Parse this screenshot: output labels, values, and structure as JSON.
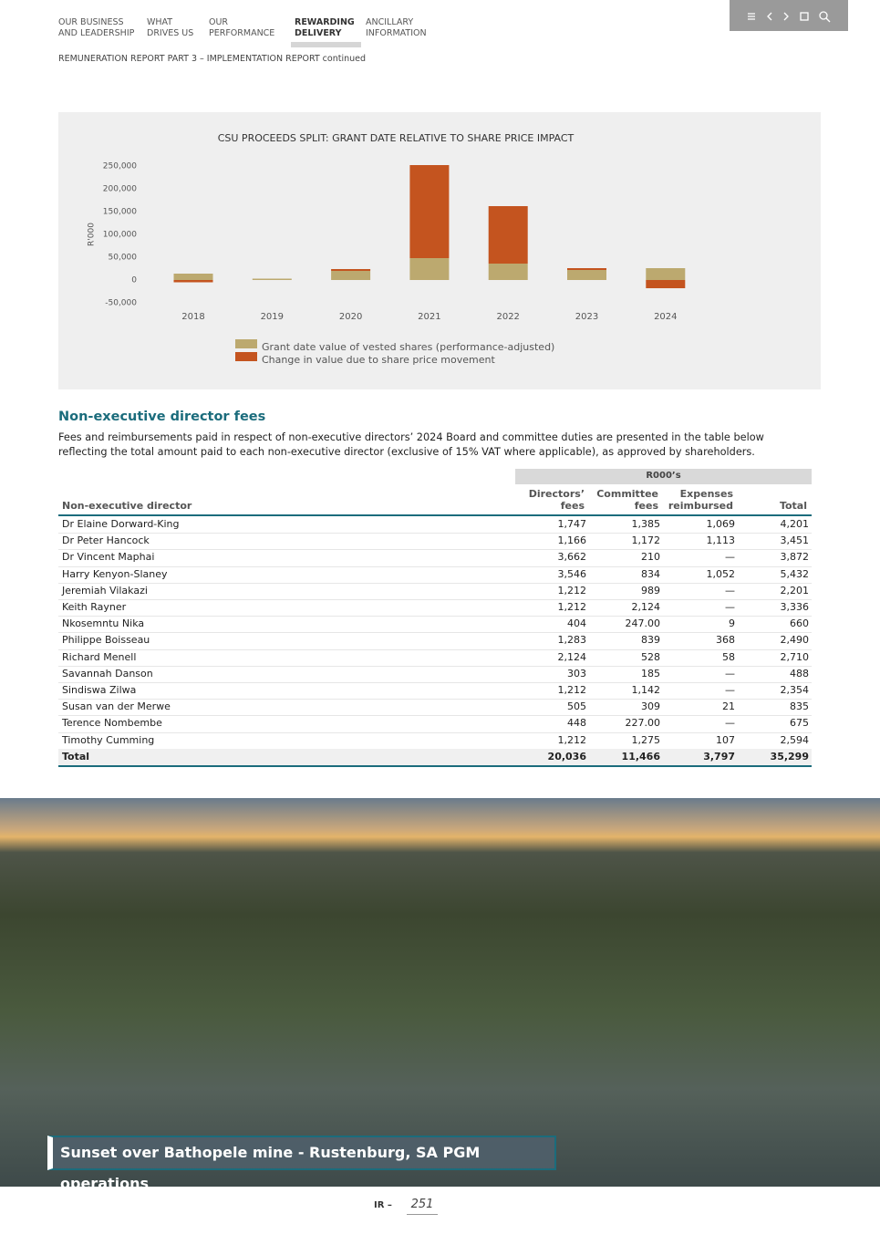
{
  "header": {
    "nav": [
      [
        "OUR BUSINESS",
        "AND LEADERSHIP"
      ],
      [
        "WHAT",
        "DRIVES US"
      ],
      [
        "OUR",
        "PERFORMANCE"
      ],
      [
        "REWARDING",
        "DELIVERY"
      ],
      [
        "ANCILLARY",
        "INFORMATION"
      ]
    ],
    "active": 3,
    "subtitle": "REMUNERATION REPORT PART 3 – IMPLEMENTATION REPORT continued"
  },
  "chart_data": {
    "type": "bar",
    "stacked": true,
    "title": "CSU PROCEEDS SPLIT: GRANT DATE RELATIVE TO SHARE PRICE IMPACT",
    "ylabel": "R'000",
    "categories": [
      "2018",
      "2019",
      "2020",
      "2021",
      "2022",
      "2023",
      "2024"
    ],
    "series": [
      {
        "name": "Grant date value of vested shares (performance-adjusted)",
        "color": "#bca96f",
        "values": [
          14000,
          3000,
          20000,
          48000,
          36000,
          22000,
          26000
        ]
      },
      {
        "name": "Change in value due to share price movement",
        "color": "#c4541f",
        "values": [
          -5000,
          0,
          4000,
          204000,
          126000,
          4000,
          -18000
        ]
      }
    ],
    "ylim": [
      -50000,
      250000
    ],
    "yticks": [
      {
        "value": -50000,
        "label": "-50,000"
      },
      0,
      {
        "value": 50000,
        "label": "50,000"
      },
      {
        "value": 100000,
        "label": "100,000"
      },
      {
        "value": 150000,
        "label": "150,000"
      },
      {
        "value": 200000,
        "label": "200,000"
      },
      {
        "value": 250000,
        "label": "250,000"
      }
    ],
    "grid": false,
    "legend": "bottom"
  },
  "section": {
    "title": "Non-executive director fees",
    "text": "Fees and reimbursements paid in respect of non-executive directors’ 2024 Board and committee duties are presented in the table below reflecting the total amount paid to each non-executive director (exclusive of 15% VAT where applicable), as approved by shareholders."
  },
  "table": {
    "group_header": "R000’s",
    "columns": [
      [
        "Non-executive director"
      ],
      [
        "Directors’",
        "fees"
      ],
      [
        "Committee",
        "fees"
      ],
      [
        "Expenses",
        "reimbursed"
      ],
      [
        "Total"
      ]
    ],
    "rows": [
      [
        "Dr Elaine Dorward-King",
        "1,747",
        "1,385",
        "1,069",
        "4,201"
      ],
      [
        "Dr Peter Hancock",
        "1,166",
        "1,172",
        "1,113",
        "3,451"
      ],
      [
        "Dr Vincent Maphai",
        "3,662",
        "210",
        "—",
        "3,872"
      ],
      [
        "Harry Kenyon-Slaney",
        "3,546",
        "834",
        "1,052",
        "5,432"
      ],
      [
        "Jeremiah Vilakazi",
        "1,212",
        "989",
        "—",
        "2,201"
      ],
      [
        "Keith Rayner",
        "1,212",
        "2,124",
        "—",
        "3,336"
      ],
      [
        "Nkosemntu Nika",
        "404",
        "247.00",
        "9",
        "660"
      ],
      [
        "Philippe Boisseau",
        "1,283",
        "839",
        "368",
        "2,490"
      ],
      [
        "Richard Menell",
        "2,124",
        "528",
        "58",
        "2,710"
      ],
      [
        "Savannah Danson",
        "303",
        "185",
        "—",
        "488"
      ],
      [
        "Sindiswa Zilwa",
        "1,212",
        "1,142",
        "—",
        "2,354"
      ],
      [
        "Susan van der Merwe",
        "505",
        "309",
        "21",
        "835"
      ],
      [
        "Terence Nombembe",
        "448",
        "227.00",
        "—",
        "675"
      ],
      [
        "Timothy Cumming",
        "1,212",
        "1,275",
        "107",
        "2,594"
      ]
    ],
    "total": [
      "Total",
      "20,036",
      "11,466",
      "3,797",
      "35,299"
    ]
  },
  "photo": {
    "caption": "Sunset over Bathopele mine - Rustenburg, SA PGM operations"
  },
  "footer": {
    "label": "IR –",
    "page": "251"
  }
}
